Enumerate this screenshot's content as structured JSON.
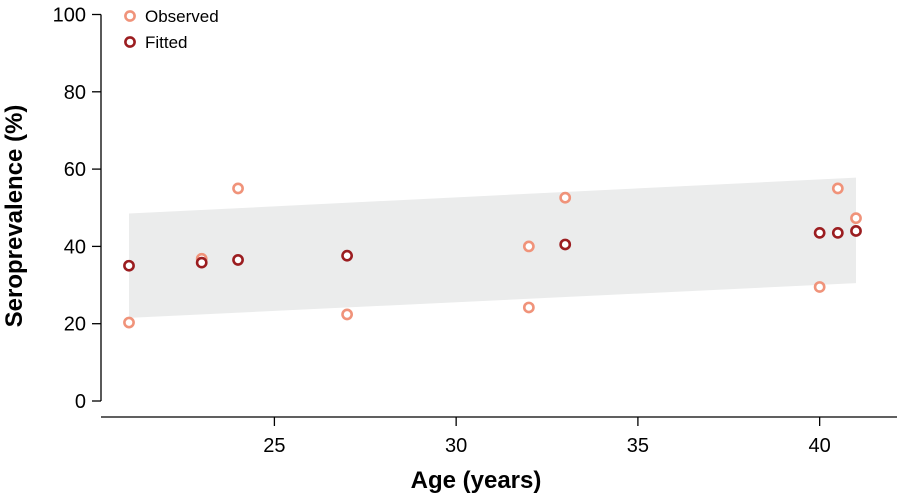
{
  "chart_data": {
    "type": "scatter",
    "xlabel": "Age (years)",
    "ylabel": "Seroprevalence (%)",
    "xlim": [
      20,
      42
    ],
    "ylim": [
      0,
      100
    ],
    "x_ticks": [
      25,
      30,
      35,
      40
    ],
    "y_ticks": [
      0,
      20,
      40,
      60,
      80,
      100
    ],
    "legend_placement": "top-left",
    "band": {
      "color": "#ebecec",
      "x": [
        21,
        41
      ],
      "lower": [
        21.5,
        30.5
      ],
      "upper": [
        48.5,
        57.8
      ]
    },
    "series": [
      {
        "name": "Observed",
        "color": "#f0937a",
        "points": [
          {
            "x": 21,
            "y": 20.3
          },
          {
            "x": 23,
            "y": 36.8
          },
          {
            "x": 24,
            "y": 55.0
          },
          {
            "x": 27,
            "y": 22.4
          },
          {
            "x": 32,
            "y": 24.2
          },
          {
            "x": 32,
            "y": 40.0
          },
          {
            "x": 33,
            "y": 52.6
          },
          {
            "x": 40,
            "y": 29.5
          },
          {
            "x": 40.5,
            "y": 55.0
          },
          {
            "x": 41,
            "y": 47.3
          }
        ]
      },
      {
        "name": "Fitted",
        "color": "#9b1d20",
        "points": [
          {
            "x": 21,
            "y": 35.0
          },
          {
            "x": 23,
            "y": 35.8
          },
          {
            "x": 24,
            "y": 36.5
          },
          {
            "x": 27,
            "y": 37.6
          },
          {
            "x": 33,
            "y": 40.5
          },
          {
            "x": 40,
            "y": 43.5
          },
          {
            "x": 40.5,
            "y": 43.5
          },
          {
            "x": 41,
            "y": 44.0
          }
        ]
      }
    ]
  }
}
